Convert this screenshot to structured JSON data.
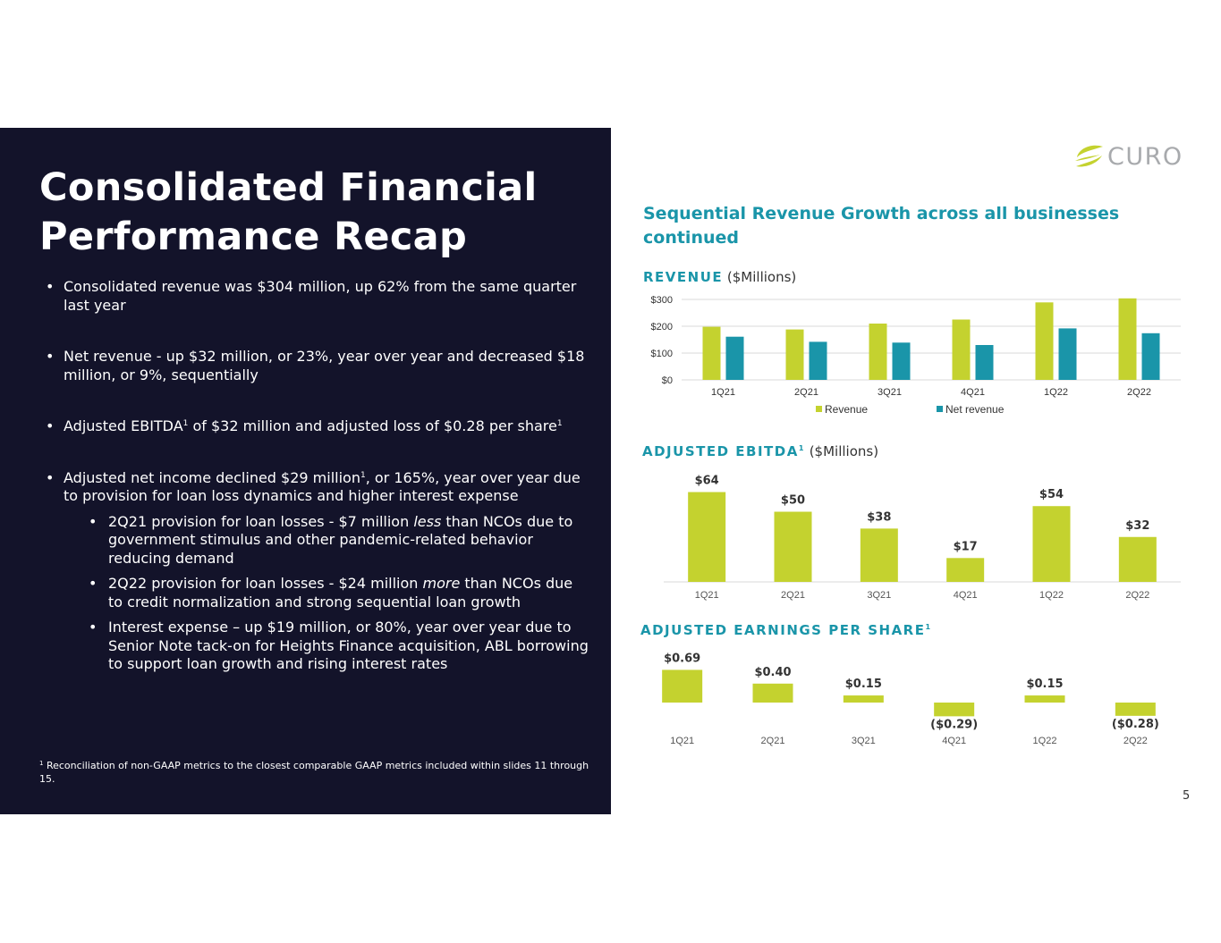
{
  "slide": {
    "title_lines": [
      "Consolidated Financial",
      "Performance Recap"
    ],
    "subtitle": "Sequential Revenue Growth across all businesses continued",
    "page_number": "5",
    "logo": {
      "text": "CURO",
      "icon": "curo-leaf-icon",
      "color": "#c4d22f"
    },
    "colors": {
      "panel": "#13132a",
      "accent": "#1a95a9",
      "revenue": "#c4d22f",
      "net_revenue": "#1a95a9"
    }
  },
  "bullets": {
    "b1": "Consolidated revenue was $304 million, up 62% from the same quarter last year",
    "b2": "Net revenue - up $32 million, or 23%, year over year and decreased $18 million, or 9%, sequentially",
    "b3_part1": "Adjusted EBITDA",
    "b3_sup1": "1",
    "b3_part2": " of $32 million and adjusted loss of $0.28 per share",
    "b3_sup2": "1",
    "b4_part1": "Adjusted net income declined $29 million",
    "b4_sup": "1",
    "b4_part2": ", or 165%,  year over year due to provision for loan loss dynamics and higher interest expense",
    "sub1_part1": "2Q21 provision for loan losses - $7 million ",
    "sub1_em": "less",
    "sub1_part2": " than NCOs due to government stimulus and other pandemic-related behavior reducing demand",
    "sub2_part1": "2Q22 provision for loan losses -  $24 million ",
    "sub2_em": "more",
    "sub2_part2": " than NCOs due to credit normalization and strong sequential loan growth",
    "sub3": "Interest expense – up $19 million, or 80%, year over year due to Senior Note tack-on for Heights Finance acquisition, ABL borrowing to support loan growth and rising interest rates"
  },
  "footnote": {
    "marker": "1",
    "text": " Reconciliation of non-GAAP metrics to the closest comparable GAAP metrics included within slides 11 through 15."
  },
  "headings": {
    "revenue_title": "REVENUE",
    "revenue_unit": " ($Millions)",
    "ebitda_title": "ADJUSTED EBITDA",
    "ebitda_sup": "1",
    "ebitda_unit": " ($Millions)",
    "eps_title": "ADJUSTED EARNINGS PER SHARE",
    "eps_sup": "1"
  },
  "chart_data": [
    {
      "type": "bar",
      "title": "REVENUE ($Millions)",
      "categories": [
        "1Q21",
        "2Q21",
        "3Q21",
        "4Q21",
        "1Q22",
        "2Q22"
      ],
      "series": [
        {
          "name": "Revenue",
          "values": [
            198,
            188,
            210,
            225,
            289,
            304
          ],
          "color": "#c4d22f"
        },
        {
          "name": "Net revenue",
          "values": [
            161,
            142,
            139,
            130,
            192,
            174
          ],
          "color": "#1a95a9"
        }
      ],
      "ylim": [
        0,
        300
      ],
      "yticks": [
        0,
        100,
        200,
        300
      ],
      "ytick_labels": [
        "$0",
        "$100",
        "$200",
        "$300"
      ],
      "grid": true,
      "legend": "bottom"
    },
    {
      "type": "bar",
      "title": "ADJUSTED EBITDA ($Millions)",
      "categories": [
        "1Q21",
        "2Q21",
        "3Q21",
        "4Q21",
        "1Q22",
        "2Q22"
      ],
      "values": [
        64,
        50,
        38,
        17,
        54,
        32
      ],
      "labels": [
        "$64",
        "$50",
        "$38",
        "$17",
        "$54",
        "$32"
      ],
      "color": "#c4d22f",
      "grid": false
    },
    {
      "type": "bar",
      "title": "ADJUSTED EARNINGS PER SHARE",
      "categories": [
        "1Q21",
        "2Q21",
        "3Q21",
        "4Q21",
        "1Q22",
        "2Q22"
      ],
      "values": [
        0.69,
        0.4,
        0.15,
        -0.29,
        0.15,
        -0.28
      ],
      "labels": [
        "$0.69",
        "$0.40",
        "$0.15",
        "($0.29)",
        "$0.15",
        "($0.28)"
      ],
      "color": "#c4d22f",
      "grid": false
    }
  ]
}
